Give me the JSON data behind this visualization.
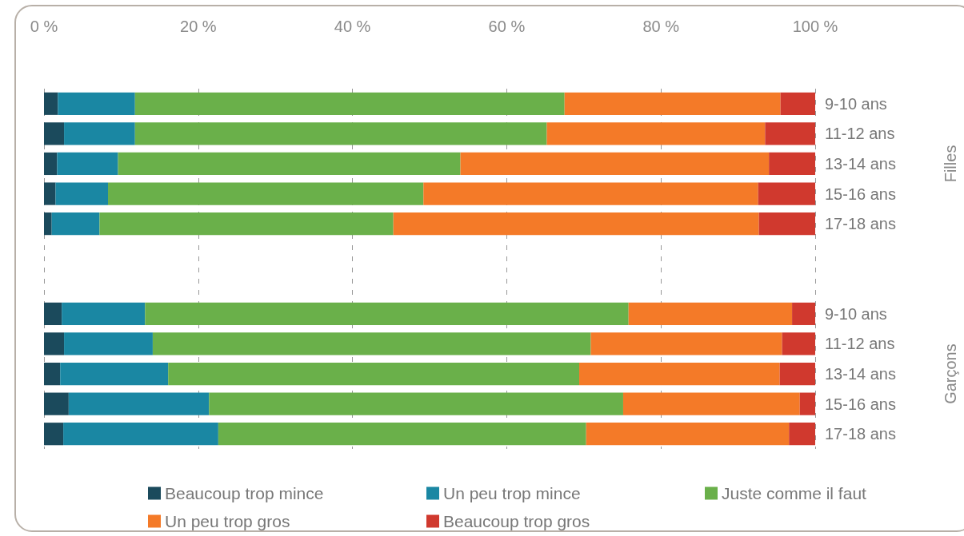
{
  "chart_data": {
    "type": "bar",
    "orientation": "horizontal",
    "stacked": true,
    "categories": [
      "9-10 ans",
      "11-12 ans",
      "13-14 ans",
      "15-16 ans",
      "17-18 ans",
      null,
      null,
      "9-10 ans",
      "11-12 ans",
      "13-14 ans",
      "15-16 ans",
      "17-18 ans"
    ],
    "series": [
      {
        "name": "Beaucoup trop mince",
        "color": "#1b4a5c",
        "values": [
          1.8,
          2.6,
          1.7,
          1.5,
          1.0,
          null,
          null,
          2.3,
          2.6,
          2.1,
          3.2,
          2.5
        ]
      },
      {
        "name": "Un peu trop mince",
        "color": "#1a87a3",
        "values": [
          10.0,
          9.2,
          7.9,
          6.8,
          6.2,
          null,
          null,
          10.8,
          11.5,
          14.0,
          18.2,
          20.1
        ]
      },
      {
        "name": "Juste comme il faut",
        "color": "#6ab04a",
        "values": [
          55.7,
          53.4,
          44.4,
          40.9,
          38.1,
          null,
          null,
          62.7,
          56.8,
          53.3,
          53.7,
          47.7
        ]
      },
      {
        "name": "Un peu trop gros",
        "color": "#f47a28",
        "values": [
          28.0,
          28.3,
          40.0,
          43.4,
          47.4,
          null,
          null,
          21.2,
          24.8,
          26.0,
          22.9,
          26.3
        ]
      },
      {
        "name": "Beaucoup trop gros",
        "color": "#d0392e",
        "values": [
          4.5,
          6.5,
          6.0,
          7.4,
          7.3,
          null,
          null,
          3.0,
          4.3,
          4.6,
          2.0,
          3.4
        ]
      }
    ],
    "xlim": [
      0,
      100
    ],
    "xticks": [
      {
        "value": 0,
        "label": "0 %"
      },
      {
        "value": 20,
        "label": "20 %"
      },
      {
        "value": 40,
        "label": "40 %"
      },
      {
        "value": 60,
        "label": "60 %"
      },
      {
        "value": 80,
        "label": "80 %"
      },
      {
        "value": 100,
        "label": "100 %"
      }
    ],
    "grid": "x",
    "legend": "bottom",
    "annotations": [
      "Filles",
      "Garçons"
    ]
  }
}
